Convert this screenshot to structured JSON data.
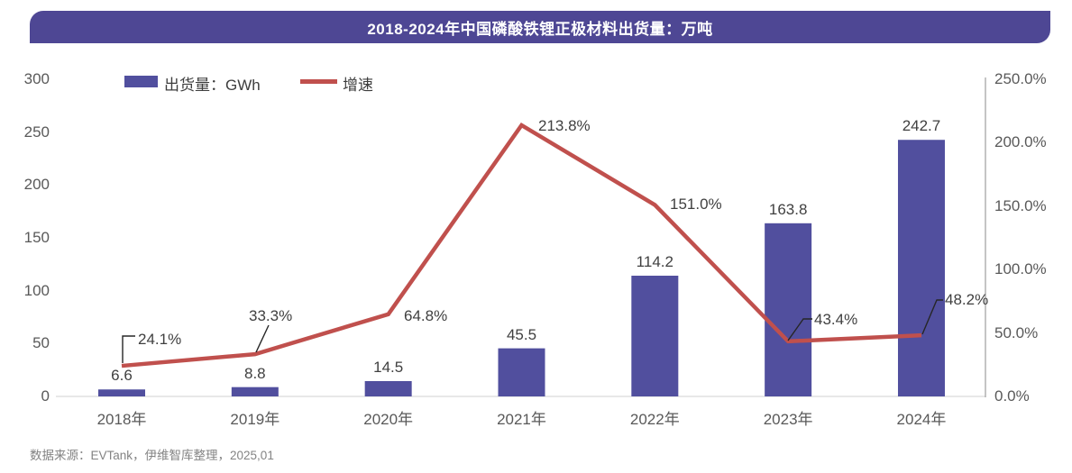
{
  "banner": {
    "title": "2018-2024年中国磷酸铁锂正极材料出货量：万吨"
  },
  "legend": {
    "bars_label": "出货量：GWh",
    "line_label": "增速"
  },
  "source": "数据来源：EVTank，伊维智库整理，2025,01",
  "colors": {
    "banner": "#4E4794",
    "bar": "#514F9E",
    "line": "#C0504D",
    "axis_text": "#595959",
    "x_axis_line": "#D9D9D9",
    "right_axis_line": "#A6A6A6",
    "callout": "#262626"
  },
  "chart_data": {
    "type": "bar",
    "subtype": "combo-bar-line-dual-axis",
    "title": "2018-2024年中国磷酸铁锂正极材料出货量：万吨",
    "categories": [
      "2018年",
      "2019年",
      "2020年",
      "2021年",
      "2022年",
      "2023年",
      "2024年"
    ],
    "series": [
      {
        "name": "出货量：GWh",
        "type": "bar",
        "axis": "left",
        "values": [
          6.6,
          8.8,
          14.5,
          45.5,
          114.2,
          163.8,
          242.7
        ],
        "labels": [
          "6.6",
          "8.8",
          "14.5",
          "45.5",
          "114.2",
          "163.8",
          "242.7"
        ]
      },
      {
        "name": "增速",
        "type": "line",
        "axis": "right",
        "values": [
          24.1,
          33.3,
          64.8,
          213.8,
          151.0,
          43.4,
          48.2
        ],
        "labels": [
          "24.1%",
          "33.3%",
          "64.8%",
          "213.8%",
          "151.0%",
          "43.4%",
          "48.2%"
        ]
      }
    ],
    "left_axis": {
      "min": 0,
      "max": 300,
      "ticks": [
        "300",
        "250",
        "200",
        "150",
        "100",
        "50",
        "0"
      ]
    },
    "right_axis": {
      "min": 0,
      "max": 250,
      "ticks": [
        "250.0%",
        "200.0%",
        "150.0%",
        "100.0%",
        "50.0%",
        "0.0%"
      ]
    },
    "grid": false,
    "legend_position": "top-left",
    "xlabel": "",
    "ylabel_left": "GWh",
    "ylabel_right": "%"
  }
}
